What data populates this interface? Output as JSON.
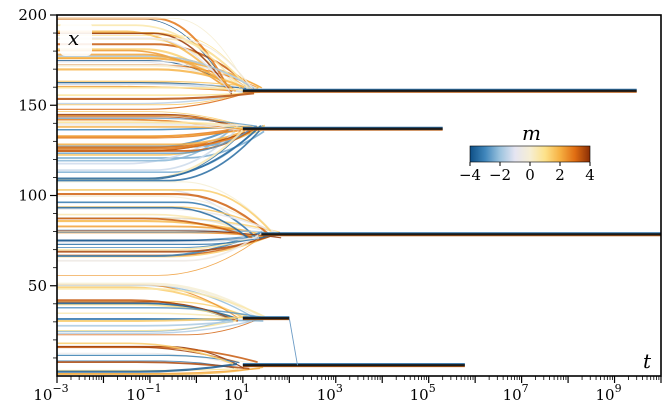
{
  "chart_data": {
    "type": "scatter",
    "xscale": "log",
    "xlim": [
      0.001,
      10000000000
    ],
    "ylim": [
      0,
      200
    ],
    "xlabel": "t",
    "ylabel": "x",
    "grid": false,
    "xticks": [
      {
        "value": 0.001,
        "base": "10",
        "exp": "−3"
      },
      {
        "value": 0.1,
        "base": "10",
        "exp": "−1"
      },
      {
        "value": 10,
        "base": "10",
        "exp": "1"
      },
      {
        "value": 1000,
        "base": "10",
        "exp": "3"
      },
      {
        "value": 100000,
        "base": "10",
        "exp": "5"
      },
      {
        "value": 10000000,
        "base": "10",
        "exp": "7"
      },
      {
        "value": 1000000000,
        "base": "10",
        "exp": "9"
      }
    ],
    "yticks": [
      {
        "value": 50,
        "label": "50"
      },
      {
        "value": 100,
        "label": "100"
      },
      {
        "value": 150,
        "label": "150"
      },
      {
        "value": 200,
        "label": "200"
      }
    ],
    "colorbar": {
      "title": "m",
      "range": [
        -4,
        4
      ],
      "ticks": [
        {
          "value": -4,
          "label": "−4"
        },
        {
          "value": -2,
          "label": "−2"
        },
        {
          "value": 0,
          "label": "0"
        },
        {
          "value": 2,
          "label": "2"
        },
        {
          "value": 4,
          "label": "4"
        }
      ],
      "colors": [
        "#0e4f86",
        "#3f86bb",
        "#9cc3de",
        "#e5e5f2",
        "#f6eed4",
        "#fde28a",
        "#f6b042",
        "#e06d12",
        "#8a2e05"
      ],
      "placement": "upper right, inside axes"
    },
    "series": [
      {
        "y": 158,
        "t_start": 10,
        "t_end": 3000000000
      },
      {
        "y": 137,
        "t_start": 10,
        "t_end": 200000
      },
      {
        "y": 78.5,
        "t_start": 25,
        "t_end": 10000000000
      },
      {
        "y": 32,
        "t_start": 10,
        "t_end": 100
      },
      {
        "y": 6,
        "t_start": 10,
        "t_end": 600000
      }
    ],
    "early_region": {
      "t_end": 40,
      "description_count": 140
    }
  }
}
